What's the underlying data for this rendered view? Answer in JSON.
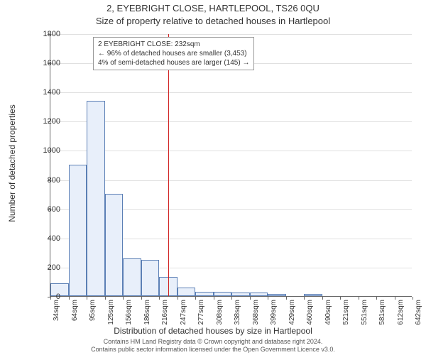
{
  "title": "2, EYEBRIGHT CLOSE, HARTLEPOOL, TS26 0QU",
  "subtitle": "Size of property relative to detached houses in Hartlepool",
  "chart": {
    "type": "histogram",
    "y_axis": {
      "label": "Number of detached properties",
      "min": 0,
      "max": 1800,
      "ticks": [
        0,
        200,
        400,
        600,
        800,
        1000,
        1200,
        1400,
        1600,
        1800
      ],
      "label_fontsize": 12,
      "tick_fontsize": 11
    },
    "x_axis": {
      "label": "Distribution of detached houses by size in Hartlepool",
      "tick_labels": [
        "34sqm",
        "64sqm",
        "95sqm",
        "125sqm",
        "156sqm",
        "186sqm",
        "216sqm",
        "247sqm",
        "277sqm",
        "308sqm",
        "338sqm",
        "368sqm",
        "399sqm",
        "429sqm",
        "460sqm",
        "490sqm",
        "521sqm",
        "551sqm",
        "581sqm",
        "612sqm",
        "642sqm"
      ],
      "label_fontsize": 12,
      "tick_fontsize": 10
    },
    "bars": {
      "counts": [
        90,
        900,
        1340,
        700,
        260,
        250,
        130,
        60,
        30,
        30,
        25,
        25,
        15,
        0,
        15,
        0,
        0,
        0,
        0,
        0
      ],
      "fill_color": "#e8effa",
      "border_color": "#5b7fb5",
      "border_width": 1,
      "bin_width_sqm": 30
    },
    "reference_line": {
      "value_sqm": 232,
      "color": "#d02020"
    },
    "annotation": {
      "line1": "2 EYEBRIGHT CLOSE: 232sqm",
      "line2": "← 96% of detached houses are smaller (3,453)",
      "line3": "4% of semi-detached houses are larger (145) →",
      "border_color": "#999999",
      "background_color": "#ffffff",
      "fontsize": 10
    },
    "background_color": "#ffffff",
    "grid_color": "#e0e0e0",
    "axis_color": "#666666"
  },
  "footer": {
    "line1": "Contains HM Land Registry data © Crown copyright and database right 2024.",
    "line2": "Contains public sector information licensed under the Open Government Licence v3.0."
  }
}
